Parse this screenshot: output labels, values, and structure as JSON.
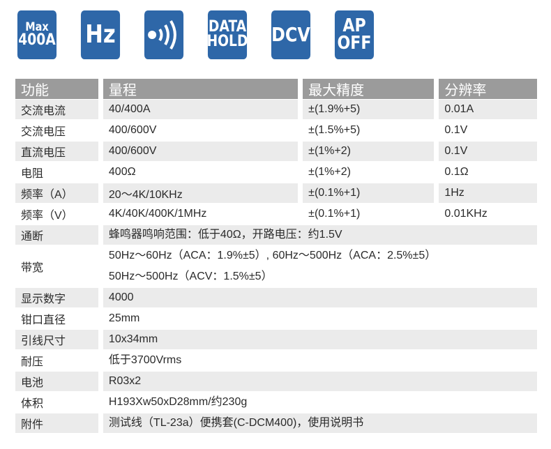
{
  "icons": [
    {
      "name": "max-400a",
      "lines": [
        "Max",
        "400A"
      ]
    },
    {
      "name": "hz",
      "lines": [
        "Hz"
      ]
    },
    {
      "name": "continuity-beep",
      "lines": []
    },
    {
      "name": "data-hold",
      "lines": [
        "DATA",
        "HOLD"
      ]
    },
    {
      "name": "dcv",
      "lines": [
        "DCV"
      ]
    },
    {
      "name": "auto-power-off",
      "lines": [
        "AP",
        "OFF"
      ]
    }
  ],
  "colors": {
    "icon_bg": "#2e67a8",
    "header_bg": "#9b9b9b",
    "row_shade": "#ebebeb"
  },
  "table": {
    "headers": [
      "功能",
      "量程",
      "最大精度",
      "分辨率"
    ],
    "rows": [
      [
        "交流电流",
        "40/400A",
        "±(1.9%+5)",
        "0.01A"
      ],
      [
        "交流电压",
        "400/600V",
        "±(1.5%+5)",
        "0.1V"
      ],
      [
        "直流电压",
        "400/600V",
        "±(1%+2)",
        "0.1V"
      ],
      [
        "电阻",
        "400Ω",
        "±(1%+2)",
        "0.1Ω"
      ],
      [
        "频率（A）",
        "20～4K/10KHz",
        "±(0.1%+1)",
        "1Hz"
      ],
      [
        "频率（V）",
        "4K/40K/400K/1MHz",
        "±(0.1%+1)",
        "0.01KHz"
      ]
    ],
    "span_rows": [
      {
        "label": "通断",
        "lines": [
          "蜂鸣器鸣响范围：低于40Ω，开路电压：约1.5V"
        ]
      },
      {
        "label": "带宽",
        "lines": [
          "50Hz～60Hz（ACA：1.9%±5）, 60Hz～500Hz（ACA：2.5%±5）",
          "50Hz～500Hz（ACV：1.5%±5）"
        ]
      },
      {
        "label": "显示数字",
        "lines": [
          "4000"
        ]
      },
      {
        "label": "钳口直径",
        "lines": [
          "25mm"
        ]
      },
      {
        "label": "引线尺寸",
        "lines": [
          "10x34mm"
        ]
      },
      {
        "label": "耐压",
        "lines": [
          "低于3700Vrms"
        ]
      },
      {
        "label": "电池",
        "lines": [
          "R03x2"
        ]
      },
      {
        "label": "体积",
        "lines": [
          "H193Xw50xD28mm/约230g"
        ]
      },
      {
        "label": "附件",
        "lines": [
          "测试线（TL-23a）便携套(C-DCM400)，使用说明书"
        ]
      }
    ]
  }
}
